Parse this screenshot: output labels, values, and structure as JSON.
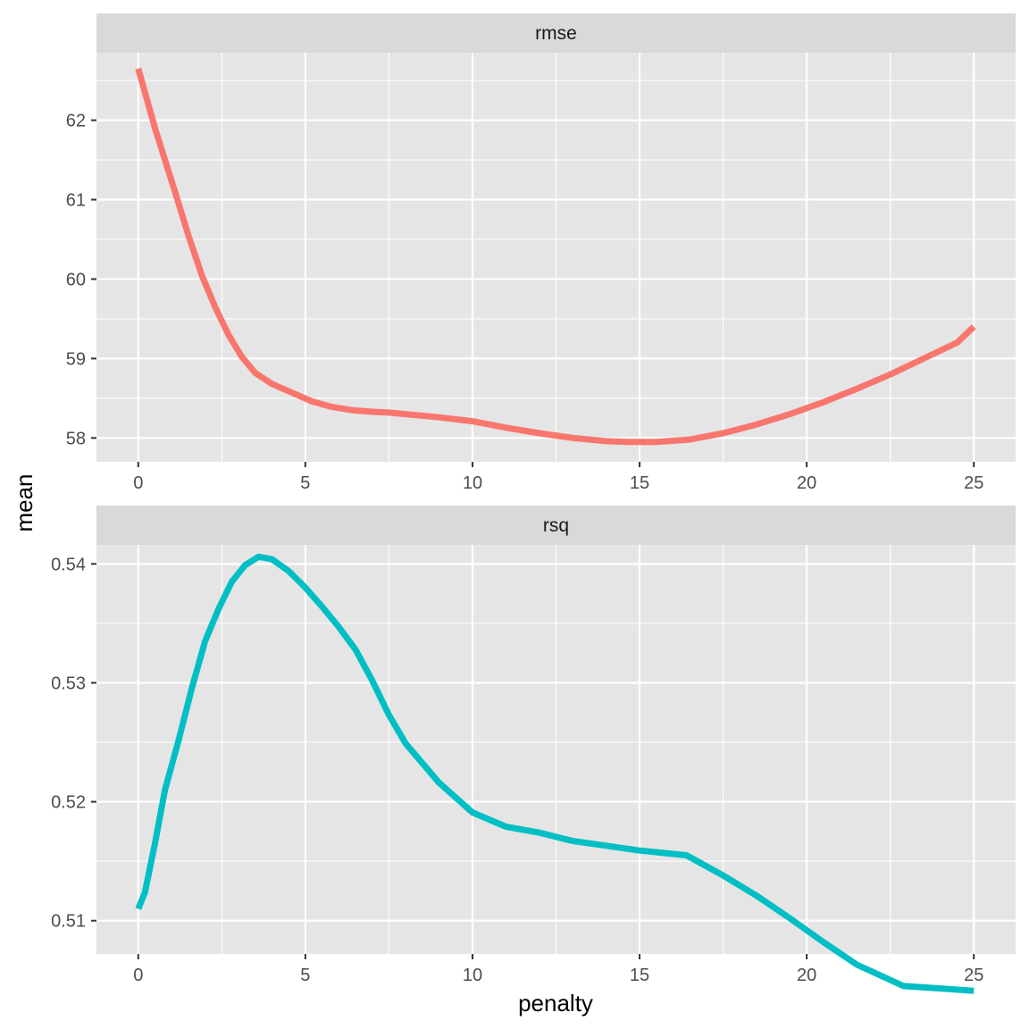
{
  "chart_data": [
    {
      "type": "line",
      "facet": "rmse",
      "xlabel": "penalty",
      "ylabel": "mean",
      "xlim": [
        -1.25,
        26.25
      ],
      "ylim": [
        57.7,
        62.85
      ],
      "xticks": [
        0,
        5,
        10,
        15,
        20,
        25
      ],
      "xtick_labels": [
        "0",
        "5",
        "10",
        "15",
        "20",
        "25"
      ],
      "yticks": [
        58,
        59,
        60,
        61,
        62
      ],
      "ytick_labels": [
        "58",
        "59",
        "60",
        "61",
        "62"
      ],
      "grid": true,
      "color": "#F8766D",
      "x": [
        0,
        0.2,
        0.5,
        0.8,
        1.1,
        1.5,
        1.9,
        2.3,
        2.7,
        3.1,
        3.5,
        4,
        4.6,
        5.2,
        5.8,
        6.4,
        7,
        7.5,
        8,
        9,
        10,
        11,
        12,
        13,
        14,
        14.7,
        15.5,
        16.5,
        17.5,
        18.5,
        19.5,
        20.5,
        21.5,
        22.5,
        23.5,
        24.5,
        25
      ],
      "y": [
        62.65,
        62.35,
        61.9,
        61.5,
        61.1,
        60.55,
        60.05,
        59.65,
        59.3,
        59.02,
        58.82,
        58.68,
        58.57,
        58.46,
        58.39,
        58.35,
        58.33,
        58.32,
        58.3,
        58.26,
        58.21,
        58.13,
        58.06,
        58.0,
        57.96,
        57.95,
        57.95,
        57.98,
        58.06,
        58.17,
        58.3,
        58.45,
        58.62,
        58.8,
        59.0,
        59.2,
        59.4
      ]
    },
    {
      "type": "line",
      "facet": "rsq",
      "xlabel": "penalty",
      "ylabel": "mean",
      "xlim": [
        -1.25,
        26.25
      ],
      "ylim": [
        0.5072,
        0.5416
      ],
      "xticks": [
        0,
        5,
        10,
        15,
        20,
        25
      ],
      "xtick_labels": [
        "0",
        "5",
        "10",
        "15",
        "20",
        "25"
      ],
      "yticks": [
        0.51,
        0.52,
        0.53,
        0.54
      ],
      "ytick_labels": [
        "0.51",
        "0.52",
        "0.53",
        "0.54"
      ],
      "grid": true,
      "color": "#00BFC4",
      "x": [
        0,
        0.2,
        0.5,
        0.8,
        1.2,
        1.6,
        2,
        2.4,
        2.8,
        3.2,
        3.6,
        4,
        4.5,
        5,
        5.5,
        6,
        6.5,
        7,
        7.5,
        8,
        9,
        10,
        11,
        12,
        13,
        14,
        15,
        16.4,
        17.5,
        18.5,
        19.5,
        20.5,
        21.5,
        22.9,
        24,
        25
      ],
      "y": [
        0.511,
        0.5124,
        0.5165,
        0.521,
        0.5251,
        0.5295,
        0.5335,
        0.5362,
        0.5385,
        0.5399,
        0.5406,
        0.5404,
        0.5394,
        0.538,
        0.5364,
        0.5347,
        0.5328,
        0.5302,
        0.5273,
        0.5249,
        0.5216,
        0.5191,
        0.5179,
        0.5174,
        0.5167,
        0.5163,
        0.5159,
        0.5155,
        0.5138,
        0.5121,
        0.5102,
        0.5082,
        0.5063,
        0.5045,
        0.5043,
        0.5041
      ]
    }
  ]
}
